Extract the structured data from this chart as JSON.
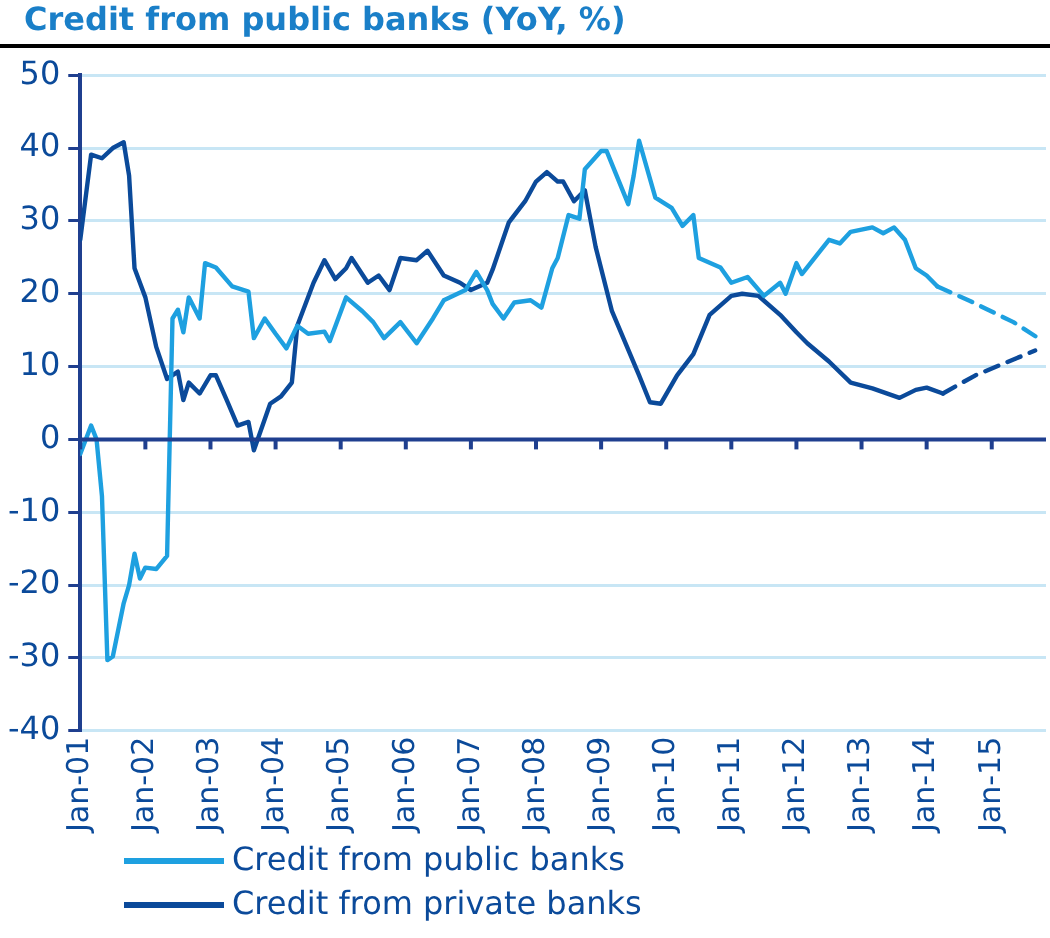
{
  "chart_data": {
    "type": "line",
    "title": "Credit from public banks (YoY, %)",
    "xlim": [
      "2001-01",
      "2015-11"
    ],
    "xticks": [
      {
        "value": "2001-01",
        "label": "Jan-01"
      },
      {
        "value": "2002-01",
        "label": "Jan-02"
      },
      {
        "value": "2003-01",
        "label": "Jan-03"
      },
      {
        "value": "2004-01",
        "label": "Jan-04"
      },
      {
        "value": "2005-01",
        "label": "Jan-05"
      },
      {
        "value": "2006-01",
        "label": "Jan-06"
      },
      {
        "value": "2007-01",
        "label": "Jan-07"
      },
      {
        "value": "2008-01",
        "label": "Jan-08"
      },
      {
        "value": "2009-01",
        "label": "Jan-09"
      },
      {
        "value": "2010-01",
        "label": "Jan-10"
      },
      {
        "value": "2011-01",
        "label": "Jan-11"
      },
      {
        "value": "2012-01",
        "label": "Jan-12"
      },
      {
        "value": "2013-01",
        "label": "Jan-13"
      },
      {
        "value": "2014-01",
        "label": "Jan-14"
      },
      {
        "value": "2015-01",
        "label": "Jan-15"
      }
    ],
    "ylim": [
      -40,
      50
    ],
    "yticks": [
      -40,
      -30,
      -20,
      -10,
      0,
      10,
      20,
      30,
      40,
      50
    ],
    "grid": "y",
    "legend": "bottom",
    "ref_lines": [
      {
        "axis": "y",
        "value": 0,
        "color": "#1f3f8f"
      }
    ],
    "marker": "none",
    "line_style": "solid",
    "series": [
      {
        "name": "Credit from public banks",
        "color": "#1ea0e0",
        "x": [
          "2001-01",
          "2001-03",
          "2001-04",
          "2001-05",
          "2001-06",
          "2001-07",
          "2001-09",
          "2001-10",
          "2001-11",
          "2001-12",
          "2002-01",
          "2002-03",
          "2002-05",
          "2002-06",
          "2002-07",
          "2002-08",
          "2002-09",
          "2002-11",
          "2002-12",
          "2003-02",
          "2003-05",
          "2003-08",
          "2003-09",
          "2003-11",
          "2004-01",
          "2004-03",
          "2004-05",
          "2004-07",
          "2004-10",
          "2004-11",
          "2005-02",
          "2005-05",
          "2005-07",
          "2005-09",
          "2005-12",
          "2006-03",
          "2006-06",
          "2006-08",
          "2006-12",
          "2007-02",
          "2007-04",
          "2007-05",
          "2007-07",
          "2007-09",
          "2007-12",
          "2008-02",
          "2008-04",
          "2008-05",
          "2008-07",
          "2008-09",
          "2008-10",
          "2009-01",
          "2009-02",
          "2009-06",
          "2009-07",
          "2009-08",
          "2009-11",
          "2010-02",
          "2010-04",
          "2010-06",
          "2010-07",
          "2010-11",
          "2011-01",
          "2011-04",
          "2011-07",
          "2011-10",
          "2011-11",
          "2012-01",
          "2012-02",
          "2012-07",
          "2012-09",
          "2012-11",
          "2013-03",
          "2013-05",
          "2013-07",
          "2013-09",
          "2013-11",
          "2014-01",
          "2014-03"
        ],
        "values": [
          -2,
          1.9,
          0,
          -7.8,
          -30.3,
          -29.8,
          -22.5,
          -20,
          -15.7,
          -19.1,
          -17.6,
          -17.8,
          -16,
          16.6,
          17.8,
          14.7,
          19.5,
          16.6,
          24.2,
          23.6,
          21,
          20.3,
          13.9,
          16.6,
          14.5,
          12.5,
          15.6,
          14.5,
          14.8,
          13.5,
          19.5,
          17.6,
          16.1,
          13.9,
          16.1,
          13.2,
          16.6,
          19.1,
          20.5,
          23,
          20.5,
          18.6,
          16.6,
          18.8,
          19.1,
          18.1,
          23.5,
          24.9,
          30.8,
          30.3,
          37.1,
          39.6,
          39.6,
          32.3,
          36.2,
          41,
          33.2,
          31.8,
          29.3,
          30.8,
          24.9,
          23.6,
          21.5,
          22.3,
          19.7,
          21.5,
          20,
          24.2,
          22.7,
          27.4,
          26.9,
          28.5,
          29.1,
          28.3,
          29.1,
          27.4,
          23.5,
          22.5,
          21
        ]
      },
      {
        "name": "Credit from private banks",
        "color": "#0b4a9a",
        "x": [
          "2001-01",
          "2001-03",
          "2001-05",
          "2001-07",
          "2001-09",
          "2001-10",
          "2001-11",
          "2002-01",
          "2002-03",
          "2002-05",
          "2002-07",
          "2002-08",
          "2002-09",
          "2002-11",
          "2003-01",
          "2003-02",
          "2003-04",
          "2003-06",
          "2003-08",
          "2003-09",
          "2003-12",
          "2004-02",
          "2004-04",
          "2004-05",
          "2004-08",
          "2004-10",
          "2004-12",
          "2005-02",
          "2005-03",
          "2005-06",
          "2005-08",
          "2005-10",
          "2005-12",
          "2006-03",
          "2006-05",
          "2006-08",
          "2006-11",
          "2007-01",
          "2007-04",
          "2007-05",
          "2007-08",
          "2007-11",
          "2008-01",
          "2008-03",
          "2008-05",
          "2008-06",
          "2008-08",
          "2008-10",
          "2008-12",
          "2009-03",
          "2009-08",
          "2009-10",
          "2009-12",
          "2010-03",
          "2010-06",
          "2010-09",
          "2011-01",
          "2011-03",
          "2011-06",
          "2011-10",
          "2012-01",
          "2012-03",
          "2012-07",
          "2012-11",
          "2013-03",
          "2013-08",
          "2013-11",
          "2014-01",
          "2014-04"
        ],
        "values": [
          27.4,
          39.1,
          38.6,
          40,
          40.8,
          36.2,
          23.5,
          19.5,
          12.7,
          8.3,
          9.3,
          5.4,
          7.8,
          6.3,
          8.8,
          8.8,
          5.4,
          1.9,
          2.4,
          -1.5,
          4.9,
          5.9,
          7.8,
          15.6,
          21.5,
          24.6,
          22,
          23.5,
          24.9,
          21.5,
          22.5,
          20.5,
          24.9,
          24.6,
          25.9,
          22.5,
          21.5,
          20.5,
          21.5,
          23.3,
          29.8,
          32.7,
          35.4,
          36.7,
          35.4,
          35.4,
          32.7,
          34.2,
          26.4,
          17.6,
          8.8,
          5.1,
          4.9,
          8.8,
          11.7,
          17.1,
          19.7,
          20,
          19.7,
          17.1,
          14.7,
          13.2,
          10.7,
          7.8,
          7,
          5.7,
          6.8,
          7.1,
          6.3
        ]
      },
      {
        "color": "#1ea0e0",
        "line_style": "dashed",
        "x": [
          "2014-03",
          "2014-09",
          "2015-05",
          "2015-10"
        ],
        "values": [
          21,
          19,
          16.1,
          13.7
        ]
      },
      {
        "color": "#0b4a9a",
        "line_style": "dashed",
        "x": [
          "2014-04",
          "2014-10",
          "2015-09"
        ],
        "values": [
          6.3,
          8.8,
          12.2
        ]
      }
    ]
  }
}
